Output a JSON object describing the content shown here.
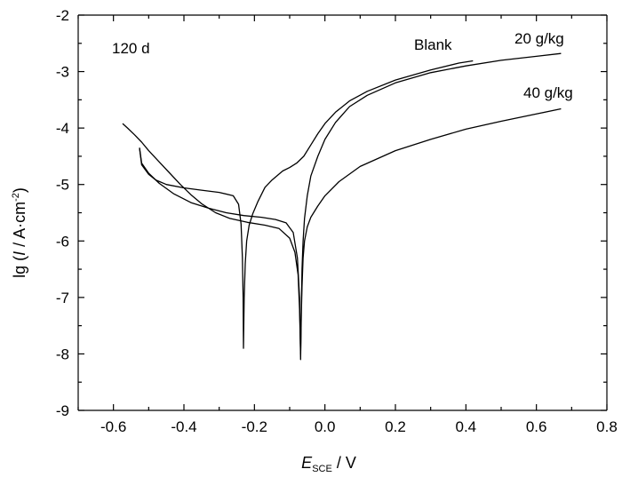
{
  "chart_data": {
    "type": "line",
    "title": "",
    "xlabel": {
      "symbol": "E",
      "subscript": "SCE",
      "unit": " / V"
    },
    "ylabel": {
      "prefix": "lg (",
      "symbol": "I",
      "unit": " / A·cm",
      "superscript": "-2",
      "suffix": ")"
    },
    "xlim": [
      -0.7,
      0.8
    ],
    "ylim": [
      -9,
      -2
    ],
    "xticks": [
      -0.6,
      -0.4,
      -0.2,
      0.0,
      0.2,
      0.4,
      0.6,
      0.8
    ],
    "xtick_labels": [
      "-0.6",
      "-0.4",
      "-0.2",
      "0.0",
      "0.2",
      "0.4",
      "0.6",
      "0.8"
    ],
    "yticks": [
      -9,
      -8,
      -7,
      -6,
      -5,
      -4,
      -3,
      -2
    ],
    "ytick_labels": [
      "-9",
      "-8",
      "-7",
      "-6",
      "-5",
      "-4",
      "-3",
      "-2"
    ],
    "grid": false,
    "line_color": "#000000",
    "annotations": {
      "time": "120 d",
      "blank": "Blank",
      "g20": "20 g/kg",
      "g40": "40 g/kg"
    },
    "series": [
      {
        "name": "Blank",
        "x": [
          -0.526,
          -0.52,
          -0.5,
          -0.48,
          -0.45,
          -0.4,
          -0.35,
          -0.3,
          -0.26,
          -0.245,
          -0.238,
          -0.234,
          -0.232,
          -0.231,
          -0.229,
          -0.226,
          -0.222,
          -0.215,
          -0.205,
          -0.19,
          -0.17,
          -0.15,
          -0.12,
          -0.1,
          -0.08,
          -0.06,
          -0.04,
          -0.02,
          0.0,
          0.03,
          0.07,
          0.12,
          0.2,
          0.3,
          0.38,
          0.42
        ],
        "y": [
          -4.35,
          -4.65,
          -4.82,
          -4.92,
          -5.0,
          -5.06,
          -5.1,
          -5.14,
          -5.2,
          -5.35,
          -5.7,
          -6.3,
          -7.0,
          -7.9,
          -7.0,
          -6.4,
          -6.0,
          -5.72,
          -5.52,
          -5.3,
          -5.05,
          -4.92,
          -4.76,
          -4.7,
          -4.62,
          -4.5,
          -4.3,
          -4.1,
          -3.92,
          -3.72,
          -3.52,
          -3.35,
          -3.15,
          -2.97,
          -2.85,
          -2.81
        ]
      },
      {
        "name": "20 g/kg",
        "x": [
          -0.574,
          -0.56,
          -0.54,
          -0.52,
          -0.5,
          -0.47,
          -0.44,
          -0.41,
          -0.38,
          -0.35,
          -0.31,
          -0.27,
          -0.22,
          -0.17,
          -0.13,
          -0.1,
          -0.085,
          -0.076,
          -0.072,
          -0.069,
          -0.067,
          -0.065,
          -0.062,
          -0.058,
          -0.05,
          -0.04,
          -0.02,
          0.0,
          0.03,
          0.07,
          0.12,
          0.2,
          0.3,
          0.4,
          0.5,
          0.6,
          0.67
        ],
        "y": [
          -3.92,
          -4.0,
          -4.12,
          -4.25,
          -4.4,
          -4.6,
          -4.8,
          -5.0,
          -5.18,
          -5.34,
          -5.5,
          -5.6,
          -5.67,
          -5.72,
          -5.78,
          -5.95,
          -6.2,
          -6.6,
          -7.2,
          -8.0,
          -7.2,
          -6.5,
          -6.0,
          -5.6,
          -5.2,
          -4.85,
          -4.5,
          -4.2,
          -3.9,
          -3.62,
          -3.42,
          -3.2,
          -3.02,
          -2.9,
          -2.8,
          -2.73,
          -2.68
        ]
      },
      {
        "name": "40 g/kg",
        "x": [
          -0.526,
          -0.52,
          -0.5,
          -0.47,
          -0.43,
          -0.38,
          -0.33,
          -0.28,
          -0.23,
          -0.18,
          -0.14,
          -0.11,
          -0.09,
          -0.078,
          -0.072,
          -0.069,
          -0.067,
          -0.065,
          -0.062,
          -0.058,
          -0.05,
          -0.04,
          -0.02,
          0.0,
          0.04,
          0.1,
          0.2,
          0.3,
          0.4,
          0.5,
          0.6,
          0.67
        ],
        "y": [
          -4.35,
          -4.62,
          -4.8,
          -4.98,
          -5.16,
          -5.32,
          -5.42,
          -5.5,
          -5.55,
          -5.58,
          -5.62,
          -5.68,
          -5.85,
          -6.3,
          -7.0,
          -8.1,
          -7.3,
          -6.8,
          -6.3,
          -6.0,
          -5.75,
          -5.58,
          -5.38,
          -5.2,
          -4.95,
          -4.68,
          -4.4,
          -4.2,
          -4.02,
          -3.88,
          -3.75,
          -3.66
        ]
      }
    ]
  }
}
